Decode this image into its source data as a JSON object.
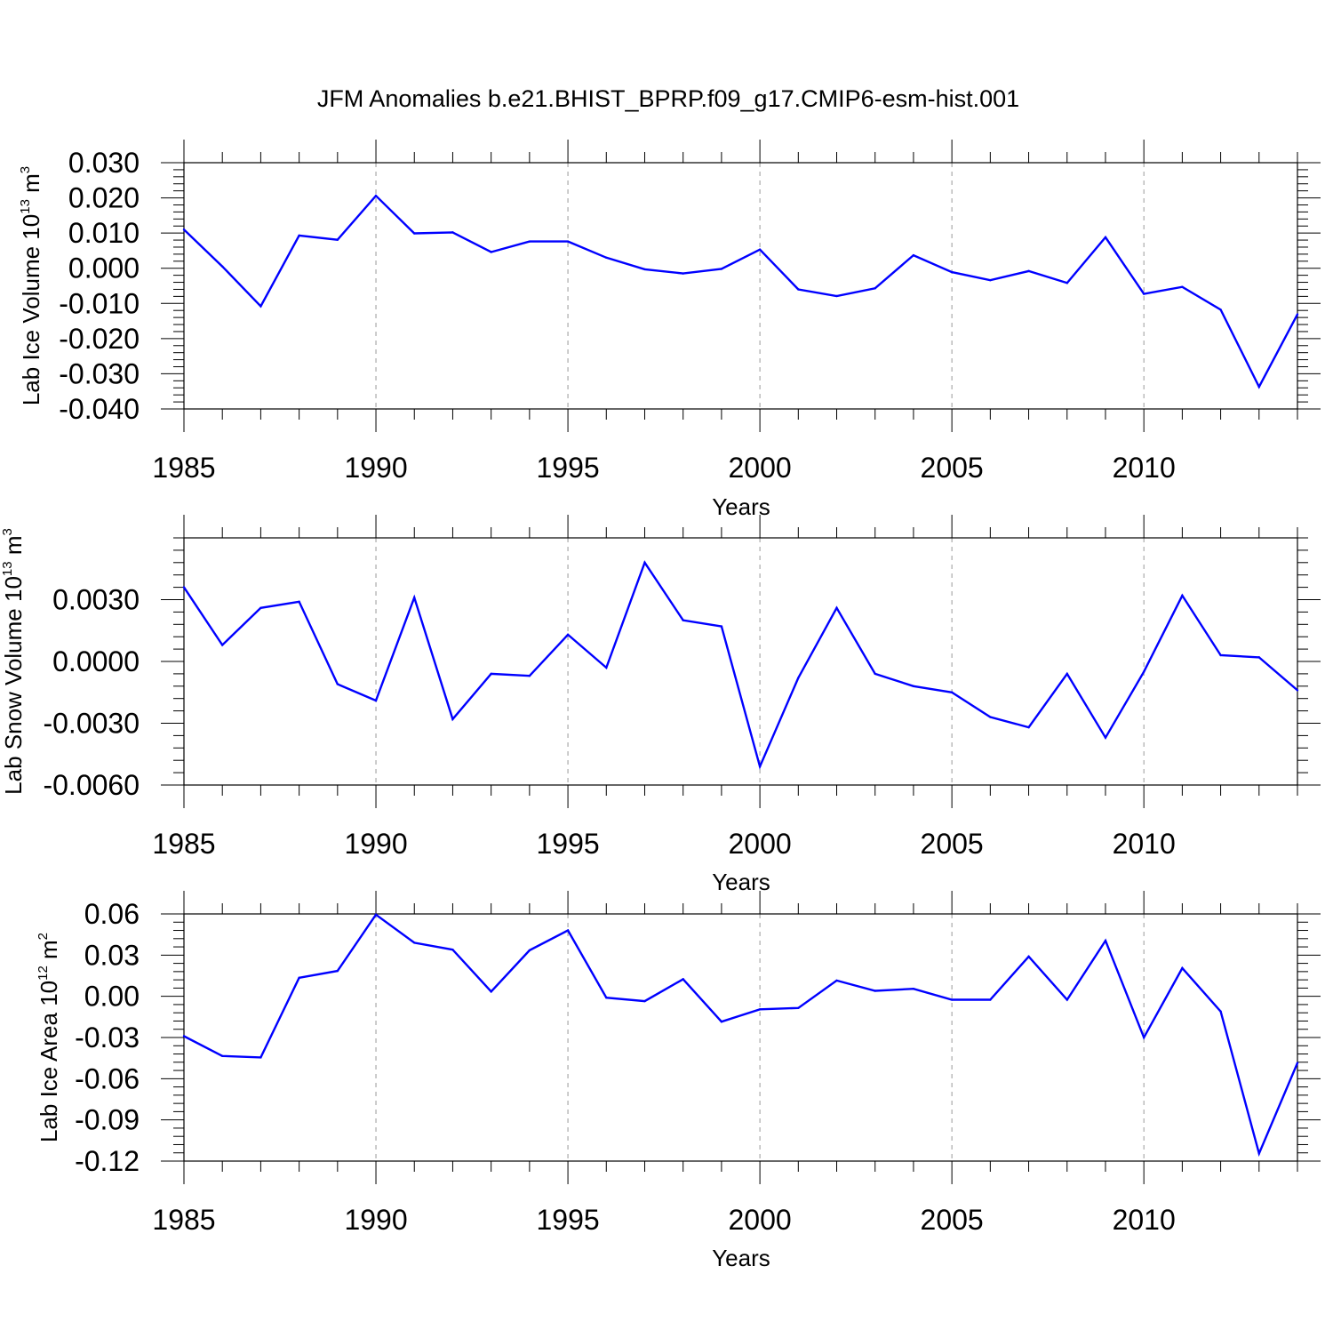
{
  "figure": {
    "title": "JFM Anomalies b.e21.BHIST_BPRP.f09_g17.CMIP6-esm-hist.001",
    "line_color": "#0000ff",
    "grid_color": "#999999"
  },
  "chart_data": [
    {
      "type": "line",
      "ylabel": {
        "main": "Lab Ice Volume 10",
        "sup": "13",
        "main2": " m",
        "sup2": "3"
      },
      "xlabel": "Years",
      "xlim": [
        1985,
        2014
      ],
      "ylim": [
        -0.04,
        0.03
      ],
      "grid": "vertical dashed at 1990, 1995, 2000, 2005, 2010",
      "x_ticks": [
        "1985",
        "1990",
        "1995",
        "2000",
        "2005",
        "2010"
      ],
      "y_ticks": [
        "0.030",
        "0.020",
        "0.010",
        "0.000",
        "-0.010",
        "-0.020",
        "-0.030",
        "-0.040"
      ],
      "y_tick_values": [
        0.03,
        0.02,
        0.01,
        0.0,
        -0.01,
        -0.02,
        -0.03,
        -0.04
      ],
      "x": [
        1985,
        1986,
        1987,
        1988,
        1989,
        1990,
        1991,
        1992,
        1993,
        1994,
        1995,
        1996,
        1997,
        1998,
        1999,
        2000,
        2001,
        2002,
        2003,
        2004,
        2005,
        2006,
        2007,
        2008,
        2009,
        2010,
        2011,
        2012,
        2013,
        2014
      ],
      "values": [
        0.011,
        0.0005,
        -0.0108,
        0.0093,
        0.0081,
        0.0206,
        0.0099,
        0.0102,
        0.0046,
        0.0076,
        0.0076,
        0.003,
        -0.0003,
        -0.0015,
        -0.0002,
        0.0053,
        -0.006,
        -0.0079,
        -0.0057,
        0.0037,
        -0.0011,
        -0.0034,
        -0.0008,
        -0.0042,
        0.0088,
        -0.0073,
        -0.0053,
        -0.0118,
        -0.0337,
        -0.0131
      ]
    },
    {
      "type": "line",
      "ylabel": {
        "main": "Lab Snow Volume 10",
        "sup": "13",
        "main2": " m",
        "sup2": "3"
      },
      "xlabel": "Years",
      "xlim": [
        1985,
        2014
      ],
      "ylim": [
        -0.006,
        0.006
      ],
      "grid": "vertical dashed at 1990, 1995, 2000, 2005, 2010",
      "x_ticks": [
        "1985",
        "1990",
        "1995",
        "2000",
        "2005",
        "2010"
      ],
      "y_ticks": [
        "0.0030",
        "0.0000",
        "-0.0030",
        "-0.0060"
      ],
      "y_tick_values": [
        0.003,
        0.0,
        -0.003,
        -0.006
      ],
      "x": [
        1985,
        1986,
        1987,
        1988,
        1989,
        1990,
        1991,
        1992,
        1993,
        1994,
        1995,
        1996,
        1997,
        1998,
        1999,
        2000,
        2001,
        2002,
        2003,
        2004,
        2005,
        2006,
        2007,
        2008,
        2009,
        2010,
        2011,
        2012,
        2013,
        2014
      ],
      "values": [
        0.0036,
        0.0008,
        0.0026,
        0.0029,
        -0.0011,
        -0.0019,
        0.0031,
        -0.0028,
        -0.0006,
        -0.0007,
        0.0013,
        -0.0003,
        0.0048,
        0.002,
        0.0017,
        -0.0051,
        -0.0008,
        0.0026,
        -0.0006,
        -0.0012,
        -0.0015,
        -0.0027,
        -0.0032,
        -0.0006,
        -0.0037,
        -0.0005,
        0.0032,
        0.0003,
        0.0002,
        -0.0014
      ]
    },
    {
      "type": "line",
      "ylabel": {
        "main": "Lab Ice Area 10",
        "sup": "12",
        "main2": " m",
        "sup2": "2"
      },
      "xlabel": "Years",
      "xlim": [
        1985,
        2014
      ],
      "ylim": [
        -0.12,
        0.06
      ],
      "grid": "vertical dashed at 1990, 1995, 2000, 2005, 2010",
      "x_ticks": [
        "1985",
        "1990",
        "1995",
        "2000",
        "2005",
        "2010"
      ],
      "y_ticks": [
        "0.06",
        "0.03",
        "0.00",
        "-0.03",
        "-0.06",
        "-0.09",
        "-0.12"
      ],
      "y_tick_values": [
        0.06,
        0.03,
        0.0,
        -0.03,
        -0.06,
        -0.09,
        -0.12
      ],
      "x": [
        1985,
        1986,
        1987,
        1988,
        1989,
        1990,
        1991,
        1992,
        1993,
        1994,
        1995,
        1996,
        1997,
        1998,
        1999,
        2000,
        2001,
        2002,
        2003,
        2004,
        2005,
        2006,
        2007,
        2008,
        2009,
        2010,
        2011,
        2012,
        2013,
        2014
      ],
      "values": [
        -0.029,
        -0.0435,
        -0.0445,
        0.0135,
        0.0185,
        0.0595,
        0.039,
        0.034,
        0.0035,
        0.0335,
        0.048,
        -0.001,
        -0.0035,
        0.0125,
        -0.0185,
        -0.0095,
        -0.0085,
        0.0115,
        0.004,
        0.0055,
        -0.0025,
        -0.0025,
        0.029,
        -0.0025,
        0.0405,
        -0.03,
        0.0205,
        -0.011,
        -0.1145,
        -0.0485
      ]
    }
  ]
}
